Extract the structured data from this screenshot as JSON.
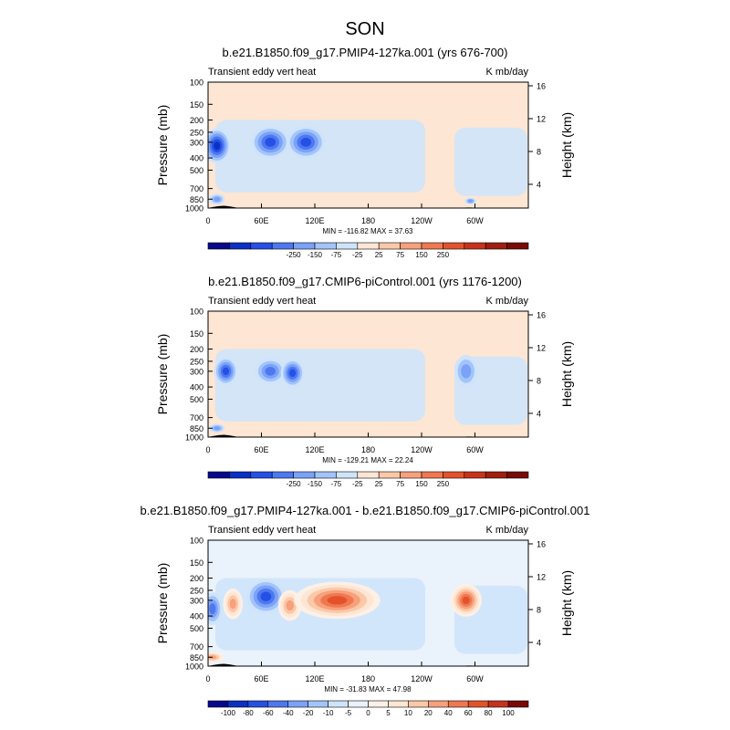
{
  "figure": {
    "title": "SON"
  },
  "chart_data": [
    {
      "type": "heatmap",
      "title": "b.e21.B1850.f09_g17.PMIP4-127ka.001 (yrs 676-700)",
      "left_string": "Transient eddy vert heat",
      "right_string": "K mb/day",
      "ylabel": "Pressure (mb)",
      "ylabel_right": "Height (km)",
      "x_ticks": [
        "0",
        "60E",
        "120E",
        "180",
        "120W",
        "60W"
      ],
      "y_ticks": [
        "100",
        "150",
        "200",
        "250",
        "300",
        "400",
        "500",
        "700",
        "850",
        "1000"
      ],
      "y_right_ticks": [
        "16",
        "12",
        "8",
        "4"
      ],
      "min_max": "MIN = -116.82  MAX =  37.63",
      "colorbar": {
        "labels": [
          "-250",
          "-150",
          "-75",
          "-25",
          "25",
          "75",
          "150",
          "250"
        ],
        "colors": [
          "#08088c",
          "#0d2fc4",
          "#2550e6",
          "#4d78f0",
          "#7aa2f7",
          "#a3c4fa",
          "#cfe4fb",
          "#fde6d3",
          "#fbc8a8",
          "#f7a07c",
          "#f07850",
          "#e4522c",
          "#c8321a",
          "#a01d10",
          "#7a0a04"
        ]
      },
      "background_class": 7,
      "blobs": [
        {
          "lon": 10,
          "p": 320,
          "rx": 7,
          "ry": 1.6,
          "level": 1
        },
        {
          "lon": 70,
          "p": 300,
          "rx": 10,
          "ry": 1.5,
          "level": 2
        },
        {
          "lon": 110,
          "p": 300,
          "rx": 10,
          "ry": 1.5,
          "level": 2
        },
        {
          "lon": 10,
          "p": 850,
          "rx": 4,
          "ry": 0.5,
          "level": 4
        },
        {
          "lon": 295,
          "p": 880,
          "rx": 3,
          "ry": 0.3,
          "level": 4
        }
      ]
    },
    {
      "type": "heatmap",
      "title": "b.e21.B1850.f09_g17.CMIP6-piControl.001 (yrs 1176-1200)",
      "left_string": "Transient eddy vert heat",
      "right_string": "K mb/day",
      "ylabel": "Pressure (mb)",
      "ylabel_right": "Height (km)",
      "x_ticks": [
        "0",
        "60E",
        "120E",
        "180",
        "120W",
        "60W"
      ],
      "y_ticks": [
        "100",
        "150",
        "200",
        "250",
        "300",
        "400",
        "500",
        "700",
        "850",
        "1000"
      ],
      "y_right_ticks": [
        "16",
        "12",
        "8",
        "4"
      ],
      "min_max": "MIN = -129.21  MAX =  22.24",
      "colorbar": {
        "labels": [
          "-250",
          "-150",
          "-75",
          "-25",
          "25",
          "75",
          "150",
          "250"
        ],
        "colors": [
          "#08088c",
          "#0d2fc4",
          "#2550e6",
          "#4d78f0",
          "#7aa2f7",
          "#a3c4fa",
          "#cfe4fb",
          "#fde6d3",
          "#fbc8a8",
          "#f7a07c",
          "#f07850",
          "#e4522c",
          "#c8321a",
          "#a01d10",
          "#7a0a04"
        ]
      },
      "background_class": 7,
      "blobs": [
        {
          "lon": 20,
          "p": 300,
          "rx": 6,
          "ry": 1.3,
          "level": 2
        },
        {
          "lon": 70,
          "p": 300,
          "rx": 8,
          "ry": 1.2,
          "level": 3
        },
        {
          "lon": 95,
          "p": 310,
          "rx": 6,
          "ry": 1.3,
          "level": 2
        },
        {
          "lon": 290,
          "p": 300,
          "rx": 6,
          "ry": 1.5,
          "level": 4
        },
        {
          "lon": 10,
          "p": 850,
          "rx": 4,
          "ry": 0.4,
          "level": 4
        }
      ]
    },
    {
      "type": "heatmap",
      "title": "b.e21.B1850.f09_g17.PMIP4-127ka.001 - b.e21.B1850.f09_g17.CMIP6-piControl.001",
      "left_string": "Transient eddy vert heat",
      "right_string": "K mb/day",
      "ylabel": "Pressure (mb)",
      "ylabel_right": "Height (km)",
      "x_ticks": [
        "0",
        "60E",
        "120E",
        "180",
        "120W",
        "60W"
      ],
      "y_ticks": [
        "100",
        "150",
        "200",
        "250",
        "300",
        "400",
        "500",
        "700",
        "850",
        "1000"
      ],
      "y_right_ticks": [
        "16",
        "12",
        "8",
        "4"
      ],
      "min_max": "MIN = -31.83  MAX =  47.98",
      "colorbar": {
        "labels": [
          "-100",
          "-80",
          "-60",
          "-40",
          "-20",
          "-10",
          "-5",
          "0",
          "5",
          "10",
          "20",
          "40",
          "60",
          "80",
          "100"
        ],
        "colors": [
          "#08088c",
          "#0d2fc4",
          "#2550e6",
          "#4d78f0",
          "#7aa2f7",
          "#a3c4fa",
          "#cfe4fb",
          "#eaf2fb",
          "#fdf0e6",
          "#fde6d3",
          "#fbc8a8",
          "#f7a07c",
          "#f07850",
          "#e4522c",
          "#c8321a",
          "#7a0a04"
        ]
      },
      "background_class": 7,
      "blobs": [
        {
          "lon": 5,
          "p": 350,
          "rx": 5,
          "ry": 1.5,
          "level": 3
        },
        {
          "lon": 28,
          "p": 320,
          "rx": 5,
          "ry": 1.4,
          "level": 11
        },
        {
          "lon": 65,
          "p": 280,
          "rx": 10,
          "ry": 1.6,
          "level": 2
        },
        {
          "lon": 92,
          "p": 330,
          "rx": 6,
          "ry": 1.4,
          "level": 11
        },
        {
          "lon": 145,
          "p": 300,
          "rx": 22,
          "ry": 1.7,
          "level": 13
        },
        {
          "lon": 290,
          "p": 300,
          "rx": 8,
          "ry": 1.5,
          "level": 13
        },
        {
          "lon": 5,
          "p": 850,
          "rx": 6,
          "ry": 0.5,
          "level": 11
        }
      ]
    }
  ]
}
